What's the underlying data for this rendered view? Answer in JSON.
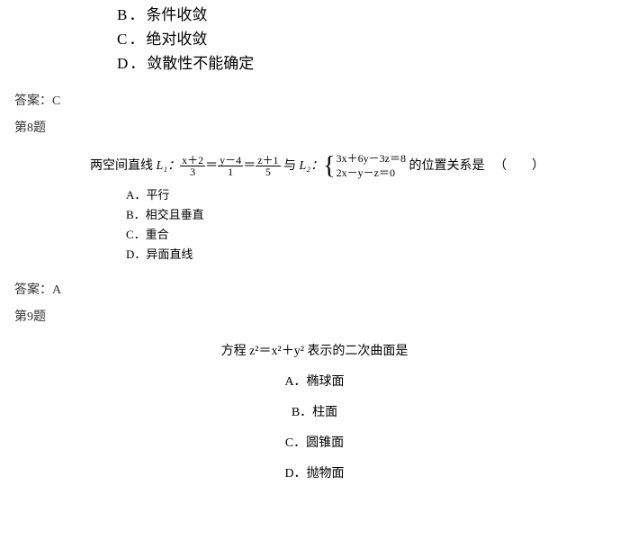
{
  "q7": {
    "opts": [
      {
        "bullet": "B．",
        "text": "条件收敛"
      },
      {
        "bullet": "C．",
        "text": "绝对收敛"
      },
      {
        "bullet": "D．",
        "text": "敛散性不能确定"
      }
    ],
    "answer_label": "答案：",
    "answer_value": "C"
  },
  "q8": {
    "header": "第8题",
    "stem_prefix": "两空间直线 ",
    "l1_label": "L₁：",
    "frac1": {
      "num": "x＋2",
      "den": "3"
    },
    "eq1": "＝",
    "frac2": {
      "num": "y－4",
      "den": "1"
    },
    "eq2": "＝",
    "frac3": {
      "num": "z＋1",
      "den": "5"
    },
    "with": "与 ",
    "l2_label": "L₂：",
    "sys": {
      "line1": "3x＋6y－3z＝8",
      "line2": "2x－y－z＝0"
    },
    "stem_suffix": "的位置关系是",
    "paren": "（　　）",
    "opts": [
      {
        "bullet": "A．",
        "text": "平行"
      },
      {
        "bullet": "B．",
        "text": "相交且垂直"
      },
      {
        "bullet": "C．",
        "text": "重合"
      },
      {
        "bullet": "D．",
        "text": "异面直线"
      }
    ],
    "answer_label": "答案：",
    "answer_value": "A"
  },
  "q9": {
    "header": "第9题",
    "stem": "方程 z²＝x²＋y² 表示的二次曲面是",
    "opts": [
      {
        "bullet": "A．",
        "text": "椭球面"
      },
      {
        "bullet": "B．",
        "text": "柱面"
      },
      {
        "bullet": "C．",
        "text": "圆锥面"
      },
      {
        "bullet": "D．",
        "text": "抛物面"
      }
    ]
  }
}
